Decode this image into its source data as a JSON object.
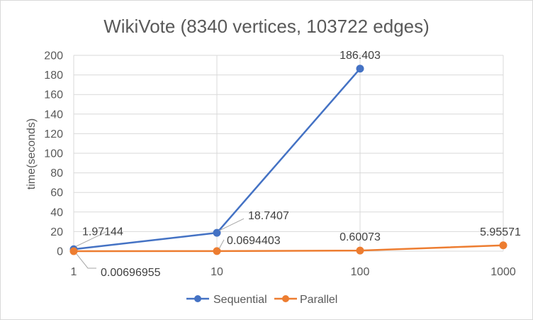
{
  "chart_data": {
    "type": "line",
    "title": "WikiVote (8340 vertices, 103722 edges)",
    "xlabel": "",
    "ylabel": "time(seconds)",
    "x_scale": "log",
    "categories": [
      "1",
      "10",
      "100",
      "1000"
    ],
    "x": [
      1,
      10,
      100,
      1000
    ],
    "ylim": [
      0,
      200
    ],
    "yticks": [
      "0",
      "20",
      "40",
      "60",
      "80",
      "100",
      "120",
      "140",
      "160",
      "180",
      "200"
    ],
    "grid": true,
    "legend_position": "bottom",
    "series": [
      {
        "name": "Sequential",
        "color": "#4472c4",
        "x": [
          1,
          10,
          100
        ],
        "values": [
          1.97144,
          18.7407,
          186.403
        ],
        "labels": [
          "1.97144",
          "18.7407",
          "186.403"
        ]
      },
      {
        "name": "Parallel",
        "color": "#ed7d31",
        "x": [
          1,
          10,
          100,
          1000
        ],
        "values": [
          0.00696955,
          0.0694403,
          0.60073,
          5.95571
        ],
        "labels": [
          "0.00696955",
          "0.0694403",
          "0.60073",
          "5.95571"
        ]
      }
    ]
  }
}
